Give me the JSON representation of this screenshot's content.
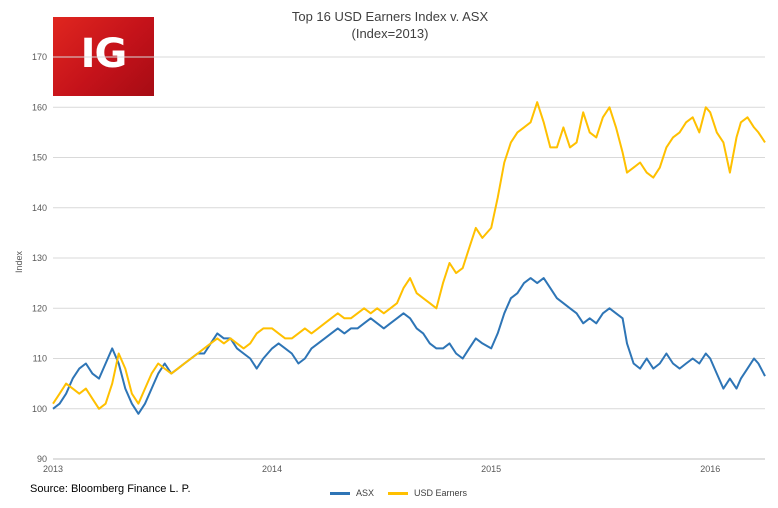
{
  "logo": {
    "text": "IG"
  },
  "source_note": "Source: Bloomberg Finance L. P.",
  "chart_data": {
    "type": "line",
    "title": "Top 16 USD Earners Index v. ASX",
    "subtitle": "(Index=2013)",
    "xlabel": "",
    "ylabel": "Index",
    "ylim": [
      90,
      170
    ],
    "yticks": [
      90,
      100,
      110,
      120,
      130,
      140,
      150,
      160,
      170
    ],
    "xlim": [
      2013.0,
      2016.25
    ],
    "xticks": [
      {
        "value": 2013,
        "label": "2013"
      },
      {
        "value": 2014,
        "label": "2014"
      },
      {
        "value": 2015,
        "label": "2015"
      },
      {
        "value": 2016,
        "label": "2016"
      }
    ],
    "grid": true,
    "legend_position": "bottom",
    "series": [
      {
        "name": "ASX",
        "color": "#2e75b6",
        "points": [
          [
            2013.0,
            100
          ],
          [
            2013.03,
            101
          ],
          [
            2013.06,
            103
          ],
          [
            2013.09,
            106
          ],
          [
            2013.12,
            108
          ],
          [
            2013.15,
            109
          ],
          [
            2013.18,
            107
          ],
          [
            2013.21,
            106
          ],
          [
            2013.24,
            109
          ],
          [
            2013.27,
            112
          ],
          [
            2013.3,
            109
          ],
          [
            2013.33,
            104
          ],
          [
            2013.36,
            101
          ],
          [
            2013.39,
            99
          ],
          [
            2013.42,
            101
          ],
          [
            2013.45,
            104
          ],
          [
            2013.48,
            107
          ],
          [
            2013.51,
            109
          ],
          [
            2013.54,
            107
          ],
          [
            2013.57,
            108
          ],
          [
            2013.6,
            109
          ],
          [
            2013.63,
            110
          ],
          [
            2013.66,
            111
          ],
          [
            2013.69,
            111
          ],
          [
            2013.72,
            113
          ],
          [
            2013.75,
            115
          ],
          [
            2013.78,
            114
          ],
          [
            2013.81,
            114
          ],
          [
            2013.84,
            112
          ],
          [
            2013.87,
            111
          ],
          [
            2013.9,
            110
          ],
          [
            2013.93,
            108
          ],
          [
            2013.96,
            110
          ],
          [
            2014.0,
            112
          ],
          [
            2014.03,
            113
          ],
          [
            2014.06,
            112
          ],
          [
            2014.09,
            111
          ],
          [
            2014.12,
            109
          ],
          [
            2014.15,
            110
          ],
          [
            2014.18,
            112
          ],
          [
            2014.21,
            113
          ],
          [
            2014.24,
            114
          ],
          [
            2014.27,
            115
          ],
          [
            2014.3,
            116
          ],
          [
            2014.33,
            115
          ],
          [
            2014.36,
            116
          ],
          [
            2014.39,
            116
          ],
          [
            2014.42,
            117
          ],
          [
            2014.45,
            118
          ],
          [
            2014.48,
            117
          ],
          [
            2014.51,
            116
          ],
          [
            2014.54,
            117
          ],
          [
            2014.57,
            118
          ],
          [
            2014.6,
            119
          ],
          [
            2014.63,
            118
          ],
          [
            2014.66,
            116
          ],
          [
            2014.69,
            115
          ],
          [
            2014.72,
            113
          ],
          [
            2014.75,
            112
          ],
          [
            2014.78,
            112
          ],
          [
            2014.81,
            113
          ],
          [
            2014.84,
            111
          ],
          [
            2014.87,
            110
          ],
          [
            2014.9,
            112
          ],
          [
            2014.93,
            114
          ],
          [
            2014.96,
            113
          ],
          [
            2015.0,
            112
          ],
          [
            2015.03,
            115
          ],
          [
            2015.06,
            119
          ],
          [
            2015.09,
            122
          ],
          [
            2015.12,
            123
          ],
          [
            2015.15,
            125
          ],
          [
            2015.18,
            126
          ],
          [
            2015.21,
            125
          ],
          [
            2015.24,
            126
          ],
          [
            2015.27,
            124
          ],
          [
            2015.3,
            122
          ],
          [
            2015.33,
            121
          ],
          [
            2015.36,
            120
          ],
          [
            2015.39,
            119
          ],
          [
            2015.42,
            117
          ],
          [
            2015.45,
            118
          ],
          [
            2015.48,
            117
          ],
          [
            2015.51,
            119
          ],
          [
            2015.54,
            120
          ],
          [
            2015.57,
            119
          ],
          [
            2015.6,
            118
          ],
          [
            2015.62,
            113
          ],
          [
            2015.65,
            109
          ],
          [
            2015.68,
            108
          ],
          [
            2015.71,
            110
          ],
          [
            2015.74,
            108
          ],
          [
            2015.77,
            109
          ],
          [
            2015.8,
            111
          ],
          [
            2015.83,
            109
          ],
          [
            2015.86,
            108
          ],
          [
            2015.89,
            109
          ],
          [
            2015.92,
            110
          ],
          [
            2015.95,
            109
          ],
          [
            2015.98,
            111
          ],
          [
            2016.0,
            110
          ],
          [
            2016.03,
            107
          ],
          [
            2016.06,
            104
          ],
          [
            2016.09,
            106
          ],
          [
            2016.12,
            104
          ],
          [
            2016.14,
            106
          ],
          [
            2016.17,
            108
          ],
          [
            2016.2,
            110
          ],
          [
            2016.22,
            109
          ],
          [
            2016.25,
            106.5
          ]
        ]
      },
      {
        "name": "USD Earners",
        "color": "#ffc000",
        "points": [
          [
            2013.0,
            101
          ],
          [
            2013.03,
            103
          ],
          [
            2013.06,
            105
          ],
          [
            2013.09,
            104
          ],
          [
            2013.12,
            103
          ],
          [
            2013.15,
            104
          ],
          [
            2013.18,
            102
          ],
          [
            2013.21,
            100
          ],
          [
            2013.24,
            101
          ],
          [
            2013.27,
            105
          ],
          [
            2013.3,
            111
          ],
          [
            2013.33,
            108
          ],
          [
            2013.36,
            103
          ],
          [
            2013.39,
            101
          ],
          [
            2013.42,
            104
          ],
          [
            2013.45,
            107
          ],
          [
            2013.48,
            109
          ],
          [
            2013.51,
            108
          ],
          [
            2013.54,
            107
          ],
          [
            2013.57,
            108
          ],
          [
            2013.6,
            109
          ],
          [
            2013.63,
            110
          ],
          [
            2013.66,
            111
          ],
          [
            2013.69,
            112
          ],
          [
            2013.72,
            113
          ],
          [
            2013.75,
            114
          ],
          [
            2013.78,
            113
          ],
          [
            2013.81,
            114
          ],
          [
            2013.84,
            113
          ],
          [
            2013.87,
            112
          ],
          [
            2013.9,
            113
          ],
          [
            2013.93,
            115
          ],
          [
            2013.96,
            116
          ],
          [
            2014.0,
            116
          ],
          [
            2014.03,
            115
          ],
          [
            2014.06,
            114
          ],
          [
            2014.09,
            114
          ],
          [
            2014.12,
            115
          ],
          [
            2014.15,
            116
          ],
          [
            2014.18,
            115
          ],
          [
            2014.21,
            116
          ],
          [
            2014.24,
            117
          ],
          [
            2014.27,
            118
          ],
          [
            2014.3,
            119
          ],
          [
            2014.33,
            118
          ],
          [
            2014.36,
            118
          ],
          [
            2014.39,
            119
          ],
          [
            2014.42,
            120
          ],
          [
            2014.45,
            119
          ],
          [
            2014.48,
            120
          ],
          [
            2014.51,
            119
          ],
          [
            2014.54,
            120
          ],
          [
            2014.57,
            121
          ],
          [
            2014.6,
            124
          ],
          [
            2014.63,
            126
          ],
          [
            2014.66,
            123
          ],
          [
            2014.69,
            122
          ],
          [
            2014.72,
            121
          ],
          [
            2014.75,
            120
          ],
          [
            2014.78,
            125
          ],
          [
            2014.81,
            129
          ],
          [
            2014.84,
            127
          ],
          [
            2014.87,
            128
          ],
          [
            2014.9,
            132
          ],
          [
            2014.93,
            136
          ],
          [
            2014.96,
            134
          ],
          [
            2015.0,
            136
          ],
          [
            2015.03,
            142
          ],
          [
            2015.06,
            149
          ],
          [
            2015.09,
            153
          ],
          [
            2015.12,
            155
          ],
          [
            2015.15,
            156
          ],
          [
            2015.18,
            157
          ],
          [
            2015.21,
            161
          ],
          [
            2015.24,
            157
          ],
          [
            2015.27,
            152
          ],
          [
            2015.3,
            152
          ],
          [
            2015.33,
            156
          ],
          [
            2015.36,
            152
          ],
          [
            2015.39,
            153
          ],
          [
            2015.42,
            159
          ],
          [
            2015.45,
            155
          ],
          [
            2015.48,
            154
          ],
          [
            2015.51,
            158
          ],
          [
            2015.54,
            160
          ],
          [
            2015.57,
            156
          ],
          [
            2015.6,
            151
          ],
          [
            2015.62,
            147
          ],
          [
            2015.65,
            148
          ],
          [
            2015.68,
            149
          ],
          [
            2015.71,
            147
          ],
          [
            2015.74,
            146
          ],
          [
            2015.77,
            148
          ],
          [
            2015.8,
            152
          ],
          [
            2015.83,
            154
          ],
          [
            2015.86,
            155
          ],
          [
            2015.89,
            157
          ],
          [
            2015.92,
            158
          ],
          [
            2015.95,
            155
          ],
          [
            2015.98,
            160
          ],
          [
            2016.0,
            159
          ],
          [
            2016.03,
            155
          ],
          [
            2016.06,
            153
          ],
          [
            2016.09,
            147
          ],
          [
            2016.12,
            154
          ],
          [
            2016.14,
            157
          ],
          [
            2016.17,
            158
          ],
          [
            2016.2,
            156
          ],
          [
            2016.22,
            155
          ],
          [
            2016.25,
            153
          ]
        ]
      }
    ]
  }
}
